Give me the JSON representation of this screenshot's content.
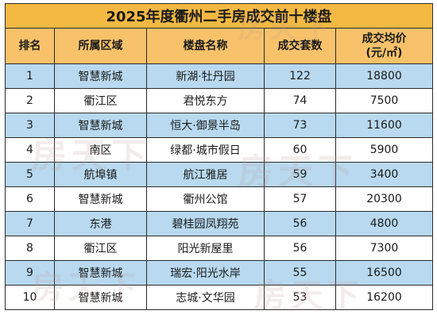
{
  "title": "2025年度衢州二手房成交前十楼盘",
  "headers": {
    "rank": "排名",
    "district": "所属区域",
    "name": "楼盘名称",
    "deals": "成交套数",
    "price_line1": "成交均价",
    "price_line2": "(元/㎡)"
  },
  "rows": [
    {
      "rank": "1",
      "district": "智慧新城",
      "name": "新湖·牡丹园",
      "deals": "122",
      "price": "18800"
    },
    {
      "rank": "2",
      "district": "衢江区",
      "name": "君悦东方",
      "deals": "74",
      "price": "7500"
    },
    {
      "rank": "3",
      "district": "智慧新城",
      "name": "恒大·御景半岛",
      "deals": "73",
      "price": "11600"
    },
    {
      "rank": "4",
      "district": "南区",
      "name": "绿都·城市假日",
      "deals": "60",
      "price": "5900"
    },
    {
      "rank": "5",
      "district": "航埠镇",
      "name": "航江雅居",
      "deals": "59",
      "price": "3400"
    },
    {
      "rank": "6",
      "district": "智慧新城",
      "name": "衢州公馆",
      "deals": "57",
      "price": "20300"
    },
    {
      "rank": "7",
      "district": "东港",
      "name": "碧桂园凤翔苑",
      "deals": "56",
      "price": "4800"
    },
    {
      "rank": "8",
      "district": "衢江区",
      "name": "阳光新屋里",
      "deals": "56",
      "price": "7300"
    },
    {
      "rank": "9",
      "district": "智慧新城",
      "name": "瑞宏·阳光水岸",
      "deals": "55",
      "price": "16500"
    },
    {
      "rank": "10",
      "district": "智慧新城",
      "name": "志城·文华园",
      "deals": "53",
      "price": "16200"
    }
  ],
  "watermark_text": "房天下",
  "colors": {
    "title_bg": "#f4b942",
    "header_bg": "#f7c26a",
    "row_blue": "#b8d9ef",
    "row_white": "#ffffff",
    "border": "#2b2b2b"
  }
}
